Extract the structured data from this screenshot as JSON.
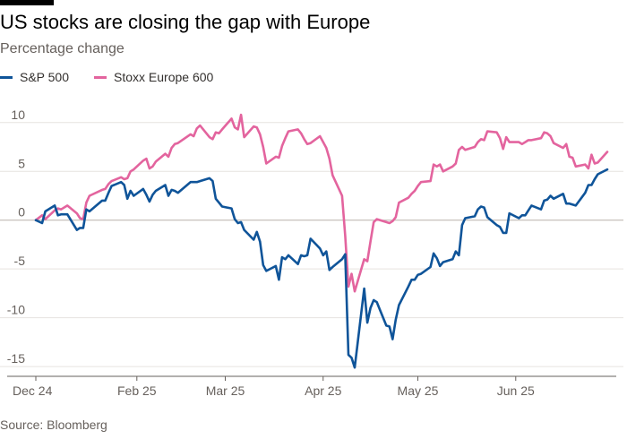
{
  "header": {
    "title": "US stocks are closing the gap with Europe",
    "subtitle": "Percentage change"
  },
  "footer": {
    "source": "Source: Bloomberg"
  },
  "chart_data": {
    "type": "line",
    "title": "US stocks are closing the gap with Europe",
    "subtitle": "Percentage change",
    "ylabel": "",
    "xlabel": "",
    "ylim": [
      -16,
      12
    ],
    "xlim": [
      "2024-12-31",
      "2025-06-30"
    ],
    "yticks": [
      10,
      5,
      0,
      -5,
      -10,
      -15
    ],
    "ytick_labels": [
      "10",
      "5",
      "0",
      "-5",
      "-10",
      "-15"
    ],
    "xticks": [
      "2024-12-31",
      "2025-02-01",
      "2025-03-01",
      "2025-04-01",
      "2025-05-01",
      "2025-06-01"
    ],
    "xtick_labels": [
      "Dec 24",
      "Feb 25",
      "Mar 25",
      "Apr 25",
      "May 25",
      "Jun 25"
    ],
    "grid": "horizontal",
    "legend_position": "top-left",
    "series": [
      {
        "name": "S&P 500",
        "color": "#0f5499",
        "points": [
          [
            "2024-12-31",
            0
          ],
          [
            "2025-01-02",
            -0.3
          ],
          [
            "2025-01-03",
            0.9
          ],
          [
            "2025-01-06",
            1.5
          ],
          [
            "2025-01-07",
            0.5
          ],
          [
            "2025-01-08",
            0.6
          ],
          [
            "2025-01-10",
            0.6
          ],
          [
            "2025-01-13",
            -1.0
          ],
          [
            "2025-01-14",
            -0.8
          ],
          [
            "2025-01-15",
            -0.8
          ],
          [
            "2025-01-16",
            1.1
          ],
          [
            "2025-01-17",
            0.9
          ],
          [
            "2025-01-21",
            2.0
          ],
          [
            "2025-01-22",
            2.0
          ],
          [
            "2025-01-23",
            2.8
          ],
          [
            "2025-01-24",
            3.5
          ],
          [
            "2025-01-27",
            3.9
          ],
          [
            "2025-01-28",
            3.6
          ],
          [
            "2025-01-29",
            2.2
          ],
          [
            "2025-01-30",
            3.0
          ],
          [
            "2025-01-31",
            2.5
          ],
          [
            "2025-02-03",
            3.2
          ],
          [
            "2025-02-04",
            2.6
          ],
          [
            "2025-02-05",
            1.9
          ],
          [
            "2025-02-06",
            2.6
          ],
          [
            "2025-02-07",
            3.0
          ],
          [
            "2025-02-10",
            3.6
          ],
          [
            "2025-02-11",
            2.5
          ],
          [
            "2025-02-12",
            3.1
          ],
          [
            "2025-02-13",
            3.0
          ],
          [
            "2025-02-14",
            2.8
          ],
          [
            "2025-02-18",
            3.9
          ],
          [
            "2025-02-19",
            3.9
          ],
          [
            "2025-02-20",
            3.9
          ],
          [
            "2025-02-21",
            4.0
          ],
          [
            "2025-02-24",
            4.3
          ],
          [
            "2025-02-25",
            4.0
          ],
          [
            "2025-02-26",
            2.2
          ],
          [
            "2025-02-27",
            1.8
          ],
          [
            "2025-02-28",
            1.4
          ],
          [
            "2025-03-03",
            1.2
          ],
          [
            "2025-03-04",
            0.1
          ],
          [
            "2025-03-05",
            -0.3
          ],
          [
            "2025-03-06",
            -0.2
          ],
          [
            "2025-03-07",
            -1.0
          ],
          [
            "2025-03-10",
            -2.0
          ],
          [
            "2025-03-11",
            -1.2
          ],
          [
            "2025-03-12",
            -2.2
          ],
          [
            "2025-03-13",
            -4.6
          ],
          [
            "2025-03-14",
            -5.2
          ],
          [
            "2025-03-17",
            -4.7
          ],
          [
            "2025-03-18",
            -6.1
          ],
          [
            "2025-03-19",
            -3.8
          ],
          [
            "2025-03-20",
            -4.0
          ],
          [
            "2025-03-21",
            -3.6
          ],
          [
            "2025-03-24",
            -4.5
          ],
          [
            "2025-03-25",
            -3.6
          ],
          [
            "2025-03-26",
            -3.7
          ],
          [
            "2025-03-27",
            -3.6
          ],
          [
            "2025-03-28",
            -1.9
          ],
          [
            "2025-03-31",
            -2.9
          ],
          [
            "2025-04-01",
            -3.6
          ],
          [
            "2025-04-02",
            -3.2
          ],
          [
            "2025-04-03",
            -5.1
          ],
          [
            "2025-04-04",
            -4.8
          ],
          [
            "2025-04-07",
            -4.0
          ],
          [
            "2025-04-08",
            -3.5
          ],
          [
            "2025-04-09",
            -13.8
          ],
          [
            "2025-04-10",
            -14.1
          ],
          [
            "2025-04-11",
            -15.1
          ],
          [
            "2025-04-14",
            -7.0
          ],
          [
            "2025-04-15",
            -10.5
          ],
          [
            "2025-04-16",
            -9.0
          ],
          [
            "2025-04-17",
            -8.2
          ],
          [
            "2025-04-18",
            -8.4
          ],
          [
            "2025-04-21",
            -10.8
          ],
          [
            "2025-04-22",
            -10.9
          ],
          [
            "2025-04-23",
            -12.2
          ],
          [
            "2025-04-24",
            -10.2
          ],
          [
            "2025-04-25",
            -8.7
          ],
          [
            "2025-04-28",
            -6.8
          ],
          [
            "2025-04-29",
            -6.1
          ],
          [
            "2025-04-30",
            -6.1
          ],
          [
            "2025-05-01",
            -5.6
          ],
          [
            "2025-05-02",
            -5.5
          ],
          [
            "2025-05-05",
            -4.8
          ],
          [
            "2025-05-06",
            -3.4
          ],
          [
            "2025-05-07",
            -3.9
          ],
          [
            "2025-05-08",
            -4.7
          ],
          [
            "2025-05-09",
            -4.3
          ],
          [
            "2025-05-12",
            -4.0
          ],
          [
            "2025-05-13",
            -3.2
          ],
          [
            "2025-05-14",
            -3.6
          ],
          [
            "2025-05-15",
            -0.5
          ],
          [
            "2025-05-16",
            0.2
          ],
          [
            "2025-05-19",
            0.4
          ],
          [
            "2025-05-20",
            1.1
          ],
          [
            "2025-05-21",
            1.4
          ],
          [
            "2025-05-22",
            1.3
          ],
          [
            "2025-05-23",
            0.3
          ],
          [
            "2025-05-26",
            -0.5
          ],
          [
            "2025-05-27",
            -0.7
          ],
          [
            "2025-05-28",
            -1.3
          ],
          [
            "2025-05-29",
            -1.3
          ],
          [
            "2025-05-30",
            0.7
          ],
          [
            "2025-06-02",
            0.2
          ],
          [
            "2025-06-03",
            0.5
          ],
          [
            "2025-06-04",
            0.5
          ],
          [
            "2025-06-05",
            1.0
          ],
          [
            "2025-06-06",
            1.5
          ],
          [
            "2025-06-09",
            1.1
          ],
          [
            "2025-06-10",
            2.0
          ],
          [
            "2025-06-11",
            2.1
          ],
          [
            "2025-06-12",
            2.5
          ],
          [
            "2025-06-13",
            2.2
          ],
          [
            "2025-06-16",
            2.7
          ],
          [
            "2025-06-17",
            1.7
          ],
          [
            "2025-06-18",
            1.7
          ],
          [
            "2025-06-20",
            1.5
          ],
          [
            "2025-06-23",
            2.8
          ],
          [
            "2025-06-24",
            3.6
          ],
          [
            "2025-06-25",
            3.6
          ],
          [
            "2025-06-26",
            4.2
          ],
          [
            "2025-06-27",
            4.7
          ],
          [
            "2025-06-30",
            5.2
          ]
        ]
      },
      {
        "name": "Stoxx Europe 600",
        "color": "#e3649e",
        "points": [
          [
            "2024-12-31",
            0
          ],
          [
            "2025-01-02",
            0.5
          ],
          [
            "2025-01-03",
            0.1
          ],
          [
            "2025-01-06",
            1.0
          ],
          [
            "2025-01-07",
            1.2
          ],
          [
            "2025-01-08",
            1.1
          ],
          [
            "2025-01-10",
            1.5
          ],
          [
            "2025-01-13",
            0.7
          ],
          [
            "2025-01-14",
            0.2
          ],
          [
            "2025-01-15",
            0.1
          ],
          [
            "2025-01-16",
            1.8
          ],
          [
            "2025-01-17",
            2.5
          ],
          [
            "2025-01-21",
            3.1
          ],
          [
            "2025-01-22",
            3.2
          ],
          [
            "2025-01-23",
            3.7
          ],
          [
            "2025-01-24",
            4.0
          ],
          [
            "2025-01-27",
            4.4
          ],
          [
            "2025-01-28",
            4.2
          ],
          [
            "2025-01-29",
            4.3
          ],
          [
            "2025-01-30",
            5.0
          ],
          [
            "2025-01-31",
            5.2
          ],
          [
            "2025-02-03",
            6.1
          ],
          [
            "2025-02-04",
            6.3
          ],
          [
            "2025-02-05",
            5.3
          ],
          [
            "2025-02-06",
            5.5
          ],
          [
            "2025-02-07",
            6.0
          ],
          [
            "2025-02-10",
            6.8
          ],
          [
            "2025-02-11",
            6.5
          ],
          [
            "2025-02-12",
            7.4
          ],
          [
            "2025-02-13",
            7.8
          ],
          [
            "2025-02-14",
            7.9
          ],
          [
            "2025-02-18",
            8.8
          ],
          [
            "2025-02-19",
            8.6
          ],
          [
            "2025-02-20",
            9.4
          ],
          [
            "2025-02-21",
            9.7
          ],
          [
            "2025-02-24",
            8.5
          ],
          [
            "2025-02-25",
            8.3
          ],
          [
            "2025-02-26",
            9.0
          ],
          [
            "2025-02-27",
            8.9
          ],
          [
            "2025-02-28",
            9.3
          ],
          [
            "2025-03-03",
            10.4
          ],
          [
            "2025-03-04",
            9.5
          ],
          [
            "2025-03-05",
            9.3
          ],
          [
            "2025-03-06",
            10.8
          ],
          [
            "2025-03-07",
            8.5
          ],
          [
            "2025-03-10",
            9.6
          ],
          [
            "2025-03-11",
            9.5
          ],
          [
            "2025-03-12",
            8.8
          ],
          [
            "2025-03-13",
            7.5
          ],
          [
            "2025-03-14",
            5.8
          ],
          [
            "2025-03-17",
            6.5
          ],
          [
            "2025-03-18",
            6.4
          ],
          [
            "2025-03-19",
            7.6
          ],
          [
            "2025-03-20",
            8.4
          ],
          [
            "2025-03-21",
            9.1
          ],
          [
            "2025-03-24",
            9.3
          ],
          [
            "2025-03-25",
            8.9
          ],
          [
            "2025-03-26",
            8.3
          ],
          [
            "2025-03-27",
            7.8
          ],
          [
            "2025-03-28",
            7.9
          ],
          [
            "2025-03-31",
            8.6
          ],
          [
            "2025-04-01",
            8.0
          ],
          [
            "2025-04-02",
            7.4
          ],
          [
            "2025-04-03",
            6.3
          ],
          [
            "2025-04-04",
            4.6
          ],
          [
            "2025-04-07",
            2.5
          ],
          [
            "2025-04-08",
            -1.6
          ],
          [
            "2025-04-09",
            -6.8
          ],
          [
            "2025-04-10",
            -5.5
          ],
          [
            "2025-04-11",
            -7.3
          ],
          [
            "2025-04-14",
            -4.0
          ],
          [
            "2025-04-15",
            -4.2
          ],
          [
            "2025-04-16",
            -2.2
          ],
          [
            "2025-04-17",
            -0.2
          ],
          [
            "2025-04-18",
            0.1
          ],
          [
            "2025-04-21",
            -0.2
          ],
          [
            "2025-04-22",
            -0.3
          ],
          [
            "2025-04-23",
            -0.1
          ],
          [
            "2025-04-24",
            0.3
          ],
          [
            "2025-04-25",
            1.8
          ],
          [
            "2025-04-28",
            2.3
          ],
          [
            "2025-04-29",
            2.7
          ],
          [
            "2025-04-30",
            3.0
          ],
          [
            "2025-05-01",
            3.5
          ],
          [
            "2025-05-02",
            3.9
          ],
          [
            "2025-05-05",
            4.0
          ],
          [
            "2025-05-06",
            5.7
          ],
          [
            "2025-05-07",
            5.5
          ],
          [
            "2025-05-08",
            5.7
          ],
          [
            "2025-05-09",
            5.0
          ],
          [
            "2025-05-12",
            5.5
          ],
          [
            "2025-05-13",
            5.8
          ],
          [
            "2025-05-14",
            7.2
          ],
          [
            "2025-05-15",
            7.5
          ],
          [
            "2025-05-16",
            7.2
          ],
          [
            "2025-05-19",
            7.5
          ],
          [
            "2025-05-20",
            8.0
          ],
          [
            "2025-05-21",
            8.3
          ],
          [
            "2025-05-22",
            8.2
          ],
          [
            "2025-05-23",
            9.1
          ],
          [
            "2025-05-26",
            9.0
          ],
          [
            "2025-05-27",
            8.4
          ],
          [
            "2025-05-28",
            7.3
          ],
          [
            "2025-05-29",
            8.5
          ],
          [
            "2025-05-30",
            8.0
          ],
          [
            "2025-06-02",
            8.0
          ],
          [
            "2025-06-03",
            7.8
          ],
          [
            "2025-06-04",
            8.0
          ],
          [
            "2025-06-05",
            8.2
          ],
          [
            "2025-06-06",
            8.2
          ],
          [
            "2025-06-09",
            8.4
          ],
          [
            "2025-06-10",
            9.0
          ],
          [
            "2025-06-11",
            8.9
          ],
          [
            "2025-06-12",
            8.6
          ],
          [
            "2025-06-13",
            7.9
          ],
          [
            "2025-06-16",
            7.4
          ],
          [
            "2025-06-17",
            7.8
          ],
          [
            "2025-06-18",
            6.5
          ],
          [
            "2025-06-19",
            6.4
          ],
          [
            "2025-06-20",
            5.5
          ],
          [
            "2025-06-23",
            5.7
          ],
          [
            "2025-06-24",
            5.3
          ],
          [
            "2025-06-25",
            6.7
          ],
          [
            "2025-06-26",
            5.8
          ],
          [
            "2025-06-27",
            5.9
          ],
          [
            "2025-06-30",
            7.0
          ]
        ]
      }
    ]
  }
}
